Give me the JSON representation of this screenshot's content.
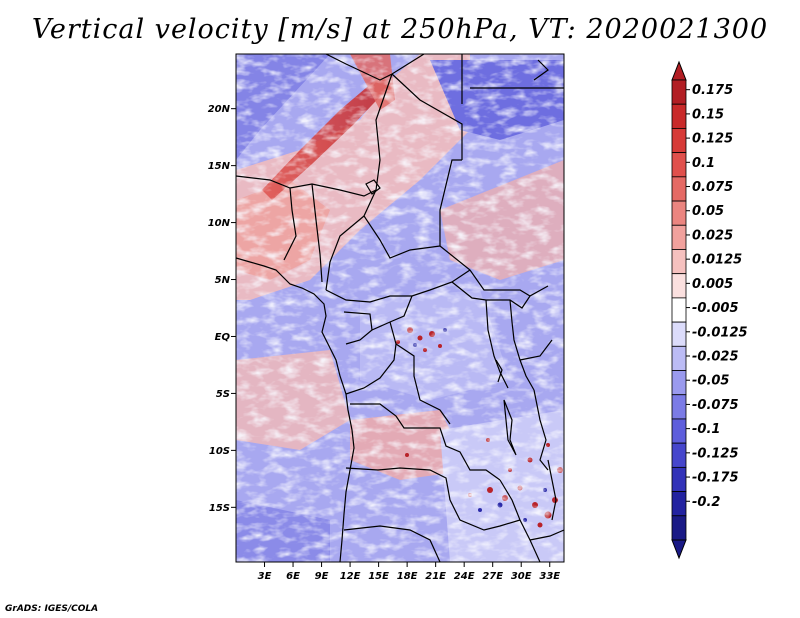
{
  "title": "Vertical velocity [m/s] at 250hPa, VT: 2020021300",
  "credit": "GrADS: IGES/COLA",
  "map": {
    "lat_labels": [
      "20N",
      "15N",
      "10N",
      "5N",
      "EQ",
      "5S",
      "10S",
      "15S"
    ],
    "lon_labels": [
      "3E",
      "6E",
      "9E",
      "12E",
      "15E",
      "18E",
      "21E",
      "24E",
      "27E",
      "30E",
      "33E"
    ],
    "lat_values": [
      20,
      15,
      10,
      5,
      0,
      -5,
      -10,
      -15
    ],
    "lon_values": [
      3,
      6,
      9,
      12,
      15,
      18,
      21,
      24,
      27,
      30,
      33
    ],
    "lon_range": [
      0,
      34.5
    ],
    "lat_range": [
      -19.8,
      24.8
    ]
  },
  "colorbar": {
    "labels": [
      "0.175",
      "0.15",
      "0.125",
      "0.1",
      "0.075",
      "0.05",
      "0.025",
      "0.0125",
      "0.005",
      "-0.005",
      "-0.0125",
      "-0.025",
      "-0.05",
      "-0.075",
      "-0.1",
      "-0.125",
      "-0.175",
      "-0.2"
    ],
    "colors": [
      "#b21e24",
      "#c92a2a",
      "#d73b38",
      "#e0504c",
      "#e56a65",
      "#eb8580",
      "#f1a19d",
      "#f6c1bf",
      "#fbe0df",
      "#ffffff",
      "#dcdcfb",
      "#bcbcf5",
      "#9a9aee",
      "#7b7be6",
      "#5e5edc",
      "#4646cc",
      "#3232b8",
      "#2222a0",
      "#1a1a86"
    ],
    "top_color": "#b21e24",
    "bottom_color": "#1a1a86"
  },
  "field_colors": {
    "strong_up": "#c8343a",
    "up": "#ef9c98",
    "weak_up": "#f7cfcd",
    "neutral": "#ffffff",
    "weak_down": "#d2d2fa",
    "down": "#9d9def",
    "strong_down": "#5252d8"
  }
}
